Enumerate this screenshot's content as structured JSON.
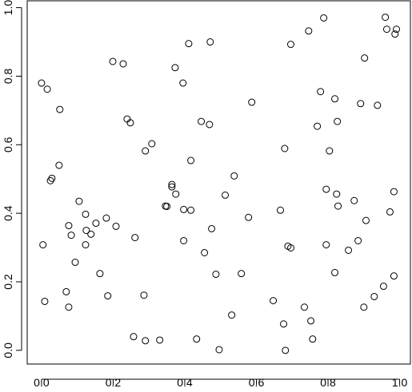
{
  "chart_data": {
    "type": "scatter",
    "x": [
      0.0,
      0.016,
      0.051,
      0.049,
      0.025,
      0.029,
      0.004,
      0.009,
      0.069,
      0.076,
      0.076,
      0.083,
      0.094,
      0.105,
      0.123,
      0.125,
      0.123,
      0.138,
      0.152,
      0.163,
      0.181,
      0.185,
      0.199,
      0.208,
      0.228,
      0.239,
      0.248,
      0.261,
      0.257,
      0.29,
      0.308,
      0.286,
      0.29,
      0.33,
      0.346,
      0.35,
      0.364,
      0.364,
      0.375,
      0.373,
      0.395,
      0.397,
      0.397,
      0.411,
      0.417,
      0.417,
      0.433,
      0.446,
      0.455,
      0.469,
      0.471,
      0.475,
      0.487,
      0.496,
      0.513,
      0.538,
      0.531,
      0.558,
      0.578,
      0.587,
      0.647,
      0.667,
      0.676,
      0.679,
      0.681,
      0.688,
      0.696,
      0.696,
      0.734,
      0.746,
      0.752,
      0.757,
      0.77,
      0.779,
      0.788,
      0.795,
      0.795,
      0.804,
      0.819,
      0.819,
      0.826,
      0.824,
      0.828,
      0.857,
      0.873,
      0.884,
      0.891,
      0.902,
      0.906,
      0.9,
      0.929,
      0.938,
      0.955,
      0.96,
      0.964,
      0.973,
      0.987,
      0.991,
      0.984,
      0.984
    ],
    "y": [
      0.78,
      0.762,
      0.703,
      0.54,
      0.495,
      0.502,
      0.308,
      0.143,
      0.171,
      0.126,
      0.364,
      0.336,
      0.257,
      0.435,
      0.397,
      0.35,
      0.308,
      0.339,
      0.371,
      0.224,
      0.386,
      0.159,
      0.843,
      0.362,
      0.836,
      0.675,
      0.664,
      0.329,
      0.04,
      0.582,
      0.603,
      0.161,
      0.028,
      0.03,
      0.421,
      0.42,
      0.484,
      0.477,
      0.456,
      0.825,
      0.78,
      0.411,
      0.32,
      0.895,
      0.554,
      0.409,
      0.033,
      0.668,
      0.285,
      0.659,
      0.9,
      0.355,
      0.222,
      0.002,
      0.453,
      0.509,
      0.103,
      0.224,
      0.388,
      0.724,
      0.145,
      0.409,
      0.077,
      0.589,
      0.0,
      0.304,
      0.299,
      0.893,
      0.126,
      0.932,
      0.086,
      0.033,
      0.654,
      0.755,
      0.97,
      0.47,
      0.308,
      0.582,
      0.227,
      0.734,
      0.668,
      0.456,
      0.421,
      0.292,
      0.437,
      0.32,
      0.72,
      0.853,
      0.379,
      0.126,
      0.157,
      0.715,
      0.187,
      0.972,
      0.937,
      0.404,
      0.923,
      0.937,
      0.463,
      0.217
    ],
    "color": "#000000",
    "xlim": [
      -0.04,
      1.03
    ],
    "ylim": [
      -0.04,
      1.02
    ],
    "xticks": [
      {
        "value": 0,
        "label": "0.0"
      },
      0.2,
      0.4,
      0.6,
      0.8,
      {
        "value": 1,
        "label": "1.0"
      }
    ],
    "yticks": [
      {
        "value": 0,
        "label": "0.0"
      },
      0.2,
      0.4,
      0.6,
      0.8,
      {
        "value": 1,
        "label": "1.0"
      }
    ]
  }
}
